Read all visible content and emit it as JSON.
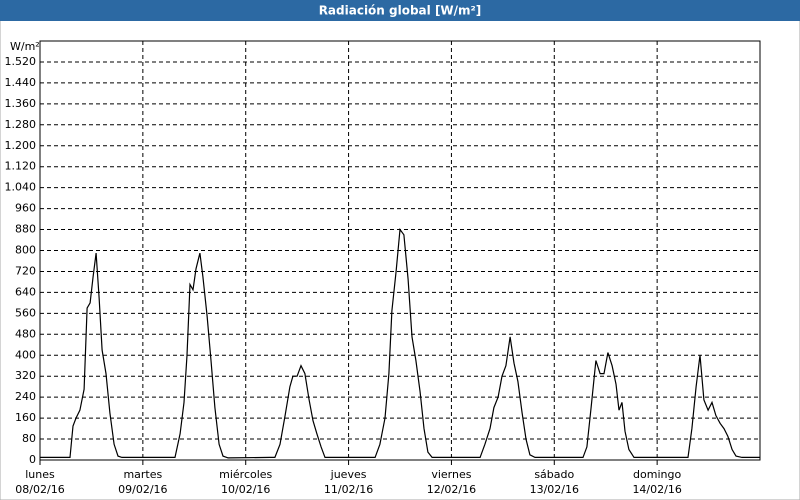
{
  "chart_data": {
    "type": "line",
    "title": "Radiación global [W/m²]",
    "y_unit": "W/m²",
    "x": [
      0,
      7.0,
      7.7,
      8.4,
      9.3,
      10.3,
      11.0,
      11.7,
      12.4,
      13.1,
      13.8,
      14.5,
      15.4,
      16.3,
      17.3,
      18.2,
      19.1,
      31.5,
      32.7,
      33.6,
      34.3,
      35.0,
      35.7,
      36.4,
      37.3,
      38.0,
      39.0,
      39.9,
      40.8,
      41.8,
      42.7,
      43.9,
      53.7,
      54.8,
      56.0,
      57.2,
      58.3,
      59.0,
      60.0,
      60.9,
      61.8,
      62.8,
      63.7,
      64.6,
      65.6,
      66.5,
      78.2,
      79.3,
      80.5,
      81.4,
      82.1,
      83.1,
      84.0,
      84.9,
      85.9,
      86.8,
      87.7,
      88.7,
      89.6,
      90.5,
      91.5,
      102.7,
      103.8,
      105.0,
      105.9,
      106.9,
      107.8,
      108.7,
      109.7,
      110.6,
      111.5,
      112.5,
      113.4,
      114.3,
      115.5,
      126.7,
      127.6,
      128.6,
      129.7,
      130.7,
      131.6,
      132.5,
      133.5,
      134.4,
      135.1,
      135.8,
      136.5,
      137.4,
      138.6,
      151.2,
      152.1,
      153.1,
      154.0,
      154.9,
      155.9,
      156.8,
      157.7,
      158.7,
      159.6,
      160.5,
      161.5,
      162.4,
      163.8,
      168
    ],
    "series": [
      {
        "name": "Radiación global",
        "color": "#000000",
        "values": [
          10,
          10,
          130,
          160,
          190,
          270,
          580,
          600,
          700,
          790,
          620,
          420,
          330,
          180,
          60,
          15,
          10,
          10,
          100,
          220,
          400,
          670,
          650,
          730,
          790,
          700,
          550,
          380,
          200,
          60,
          15,
          8,
          10,
          10,
          60,
          170,
          280,
          320,
          320,
          360,
          330,
          230,
          150,
          100,
          50,
          10,
          10,
          60,
          160,
          330,
          570,
          720,
          880,
          860,
          690,
          470,
          380,
          260,
          120,
          30,
          10,
          10,
          60,
          120,
          200,
          240,
          320,
          360,
          470,
          370,
          300,
          180,
          80,
          20,
          10,
          10,
          50,
          200,
          380,
          330,
          330,
          410,
          360,
          290,
          190,
          220,
          110,
          40,
          10,
          10,
          120,
          280,
          400,
          230,
          190,
          220,
          170,
          140,
          120,
          90,
          40,
          15,
          10,
          10
        ]
      }
    ],
    "xlim": [
      0,
      168
    ],
    "xticks": [
      {
        "value": 0,
        "label": "08/02/16"
      },
      {
        "value": 24,
        "label": "09/02/16"
      },
      {
        "value": 48,
        "label": "10/02/16"
      },
      {
        "value": 72,
        "label": "11/02/16"
      },
      {
        "value": 96,
        "label": "12/02/16"
      },
      {
        "value": 120,
        "label": "13/02/16"
      },
      {
        "value": 144,
        "label": "14/02/16"
      }
    ],
    "xtick_days": [
      "lunes",
      "martes",
      "miércoles",
      "jueves",
      "viernes",
      "sábado",
      "domingo"
    ],
    "ylim": [
      0,
      1600
    ],
    "yticks": [
      0,
      80,
      160,
      240,
      320,
      400,
      480,
      560,
      640,
      720,
      800,
      880,
      960,
      {
        "value": 1040,
        "label": "1.040"
      },
      {
        "value": 1120,
        "label": "1.120"
      },
      {
        "value": 1200,
        "label": "1.200"
      },
      {
        "value": 1280,
        "label": "1.280"
      },
      {
        "value": 1360,
        "label": "1.360"
      },
      {
        "value": 1440,
        "label": "1.440"
      },
      {
        "value": 1520,
        "label": "1.520"
      }
    ],
    "grid": true
  }
}
